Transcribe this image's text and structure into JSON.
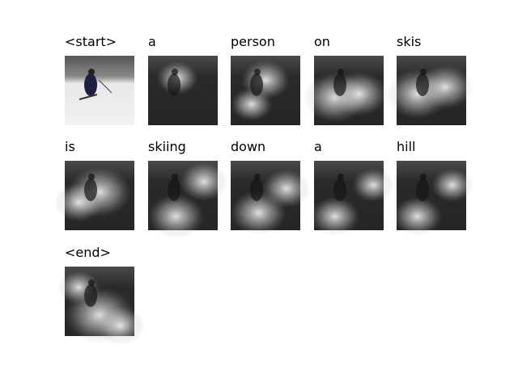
{
  "captions": [
    "<start>",
    "a",
    "person",
    "on",
    "skis",
    "is",
    "skiing",
    "down",
    "a",
    "hill",
    "<end>"
  ]
}
